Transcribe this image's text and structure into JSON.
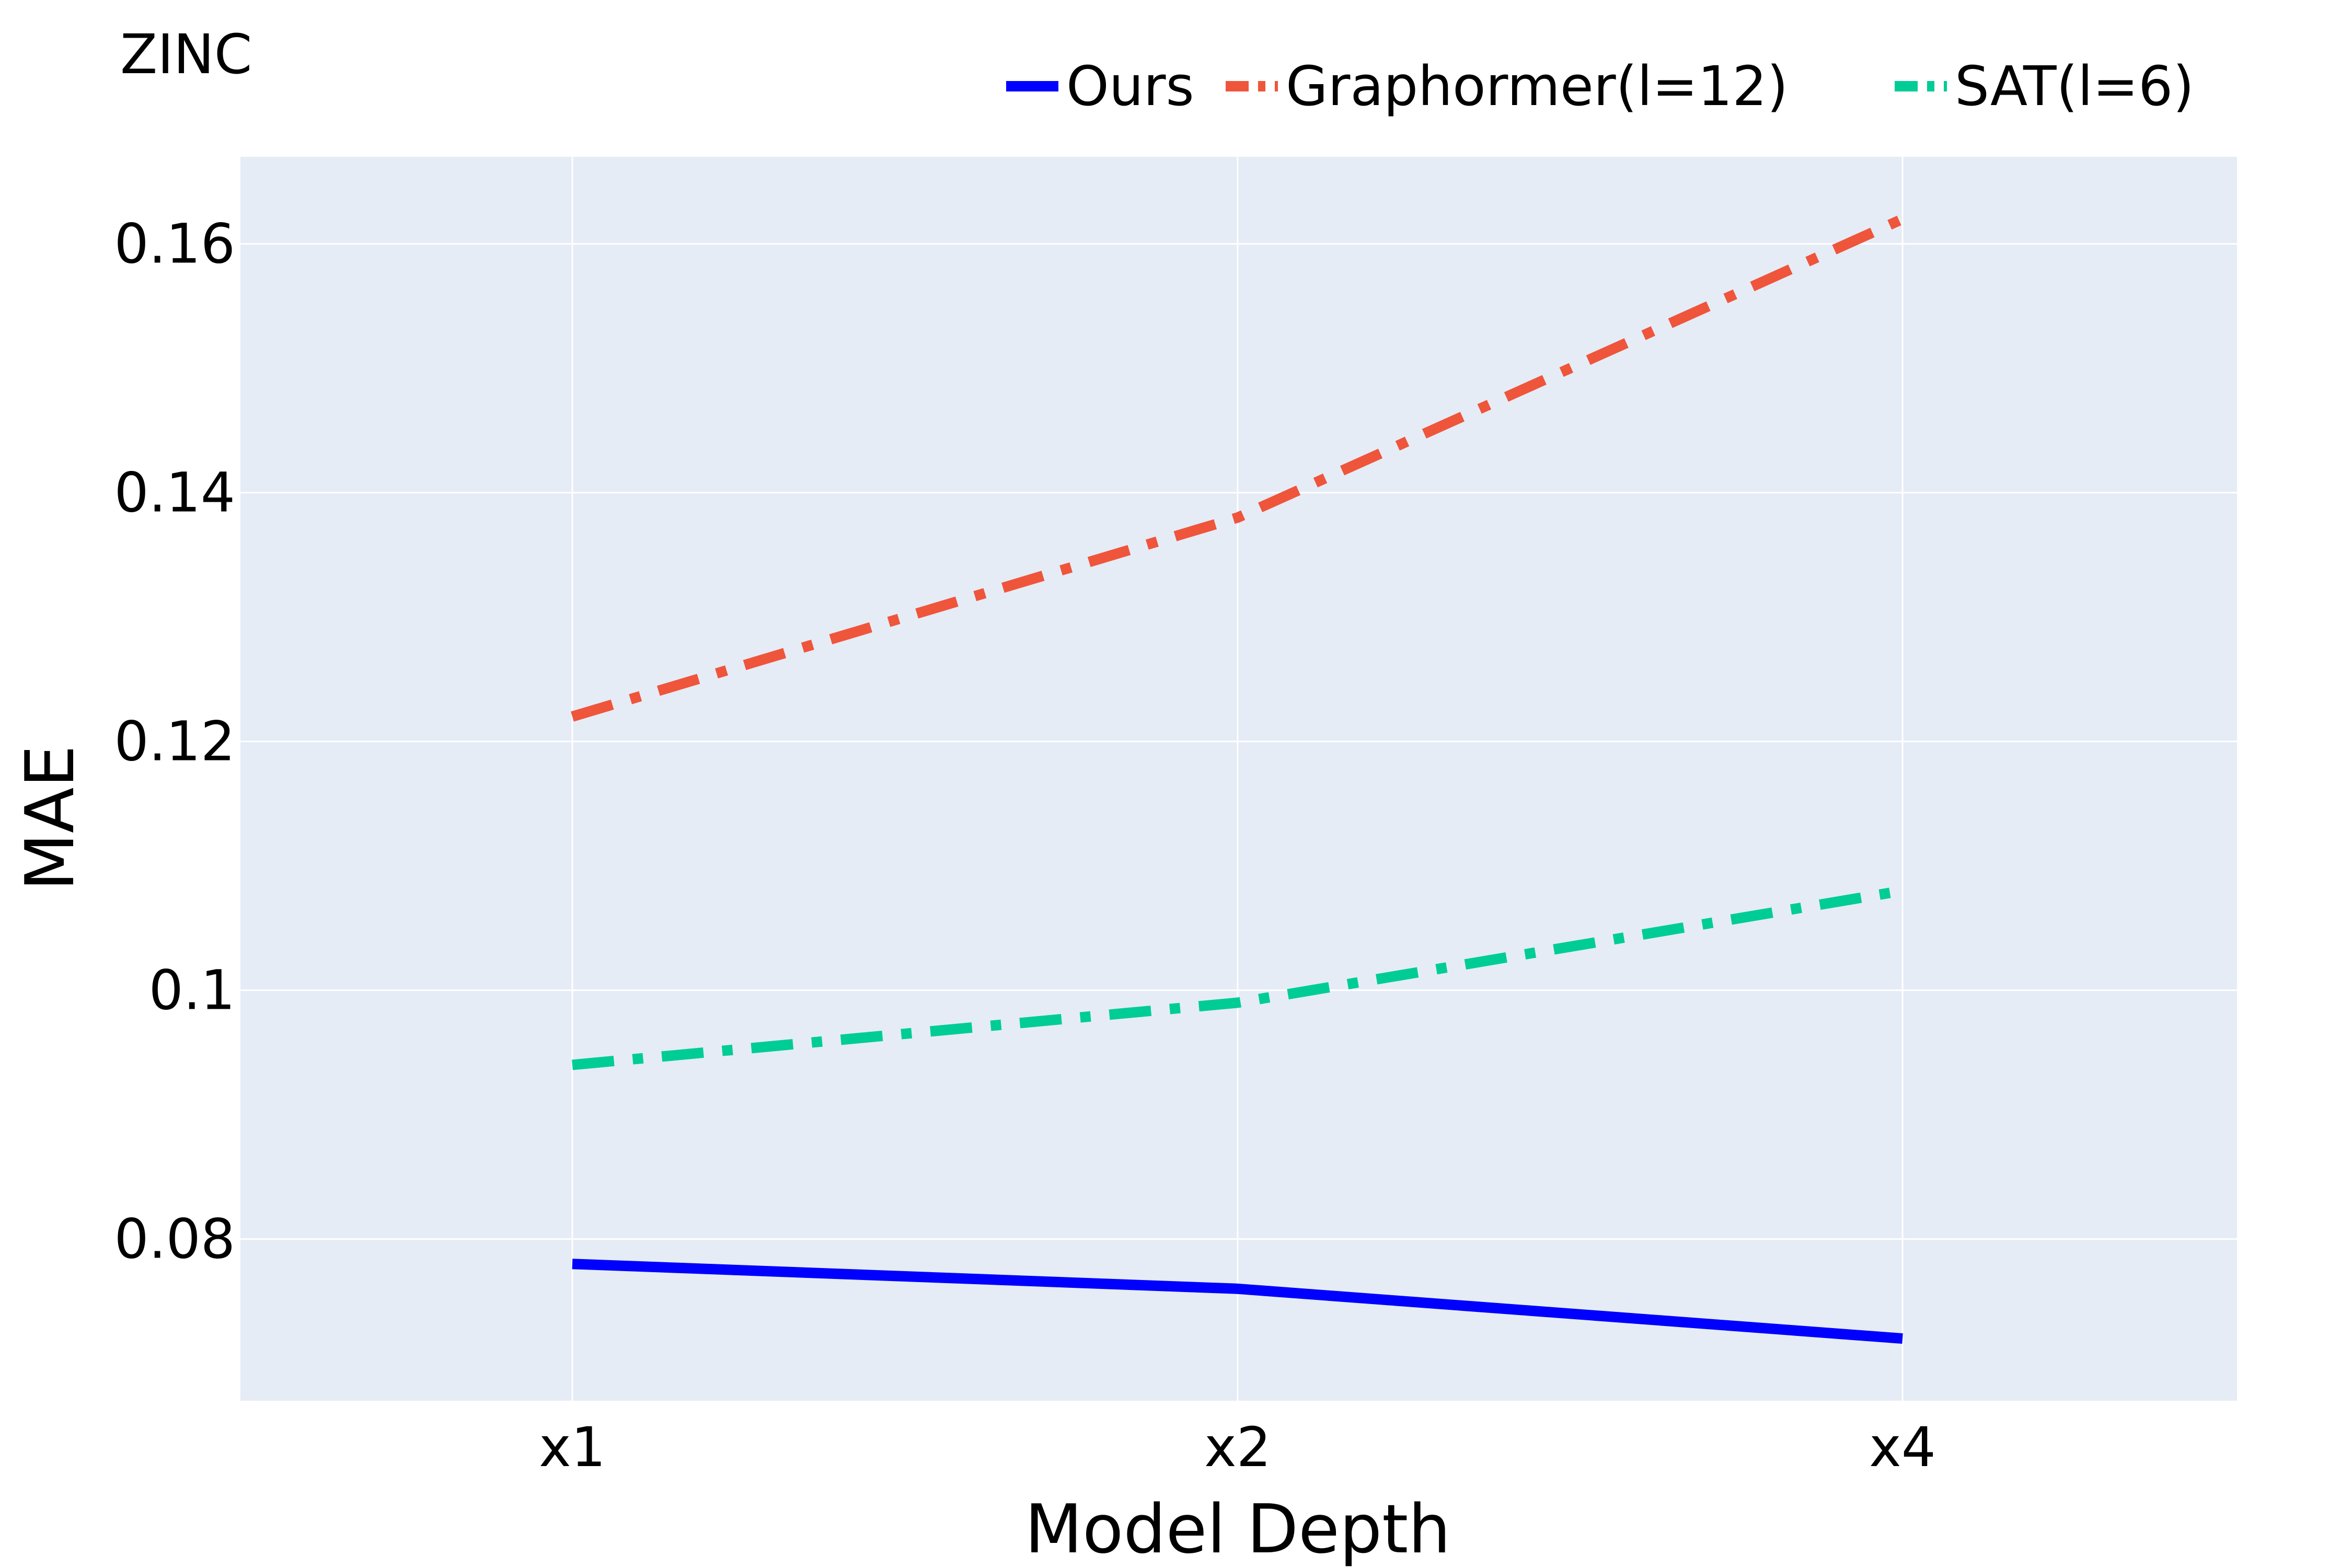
{
  "chart_data": {
    "type": "line",
    "title": "ZINC",
    "xlabel": "Model Depth",
    "ylabel": "MAE",
    "categories": [
      "x1",
      "x2",
      "x4"
    ],
    "ylim": [
      0.067,
      0.167
    ],
    "yticks": [
      0.08,
      0.1,
      0.12,
      0.14,
      0.16
    ],
    "ytick_labels": [
      "0.08",
      "0.1",
      "0.12",
      "0.14",
      "0.16"
    ],
    "grid": true,
    "legend_position": "top-right",
    "plot_background": "#e5ecf6",
    "series": [
      {
        "name": "Ours",
        "values": [
          0.078,
          0.076,
          0.072
        ],
        "color": "#0000ff",
        "dash": "solid"
      },
      {
        "name": "Graphormer(l=12)",
        "values": [
          0.122,
          0.138,
          0.162
        ],
        "color": "#ef553b",
        "dash": "dashdot"
      },
      {
        "name": "SAT(l=6)",
        "values": [
          0.094,
          0.099,
          0.108
        ],
        "color": "#00cc96",
        "dash": "dashdot"
      }
    ]
  }
}
